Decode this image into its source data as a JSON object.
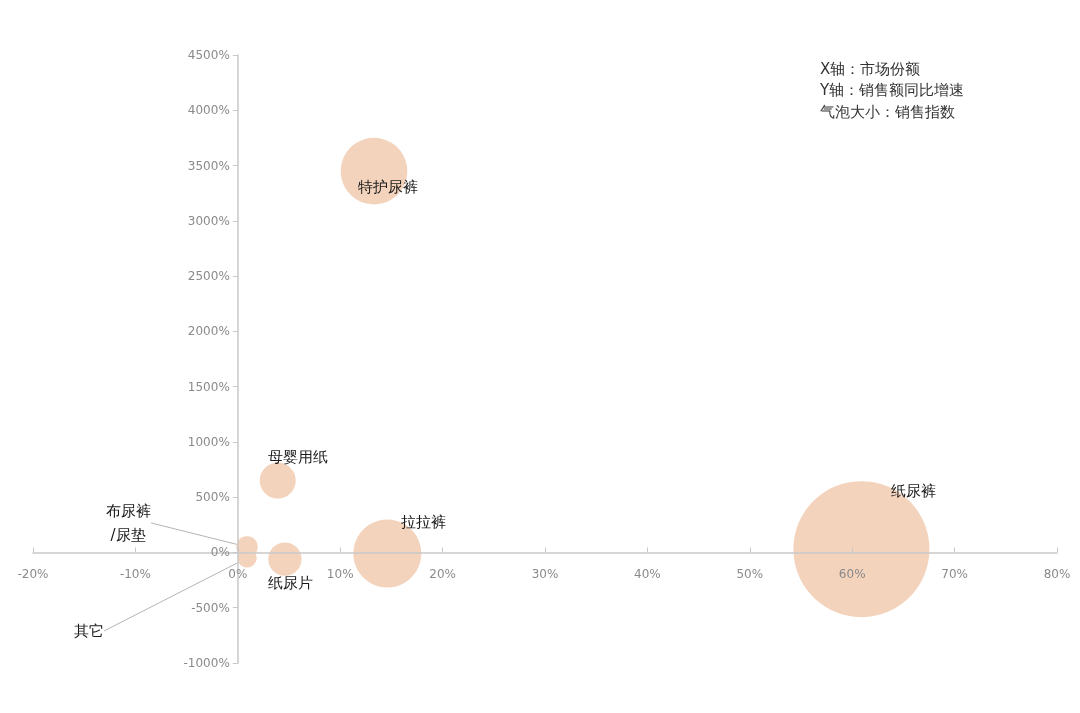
{
  "chart_data": {
    "type": "bubble",
    "annotations": [
      "X轴：市场份额",
      "Y轴：销售额同比增速",
      "气泡大小：销售指数"
    ],
    "xlim": [
      -20,
      80
    ],
    "xticks": [
      {
        "value": -20,
        "label": "-20%"
      },
      {
        "value": -10,
        "label": "-10%"
      },
      {
        "value": 0,
        "label": "0%"
      },
      {
        "value": 10,
        "label": "10%"
      },
      {
        "value": 20,
        "label": "20%"
      },
      {
        "value": 30,
        "label": "30%"
      },
      {
        "value": 40,
        "label": "40%"
      },
      {
        "value": 50,
        "label": "50%"
      },
      {
        "value": 60,
        "label": "60%"
      },
      {
        "value": 70,
        "label": "70%"
      },
      {
        "value": 80,
        "label": "80%"
      }
    ],
    "ylim": [
      -1000,
      4500
    ],
    "yticks": [
      {
        "value": -1000,
        "label": "-1000%"
      },
      {
        "value": -500,
        "label": "-500%"
      },
      {
        "value": 0,
        "label": "0%"
      },
      {
        "value": 500,
        "label": "500%"
      },
      {
        "value": 1000,
        "label": "1000%"
      },
      {
        "value": 1500,
        "label": "1500%"
      },
      {
        "value": 2000,
        "label": "2000%"
      },
      {
        "value": 2500,
        "label": "2500%"
      },
      {
        "value": 3000,
        "label": "3000%"
      },
      {
        "value": 3500,
        "label": "3500%"
      },
      {
        "value": 4000,
        "label": "4000%"
      },
      {
        "value": 4500,
        "label": "4500%"
      }
    ],
    "grid": false,
    "legend": false,
    "marker": "circle",
    "series": [
      {
        "name": "特护尿裤",
        "color": "#f3d3bc",
        "x": [
          13.3
        ],
        "values": [
          3450
        ],
        "sizes": [
          0.24
        ]
      },
      {
        "name": "母婴用纸",
        "color": "#f3d3bc",
        "x": [
          3.9
        ],
        "values": [
          650
        ],
        "sizes": [
          0.07
        ]
      },
      {
        "name": "布尿裤/尿垫",
        "color": "#f3d3bc",
        "x": [
          0.9
        ],
        "values": [
          50
        ],
        "sizes": [
          0.025
        ]
      },
      {
        "name": "其它",
        "color": "#f3d3bc",
        "x": [
          0.9
        ],
        "values": [
          -50
        ],
        "sizes": [
          0.02
        ]
      },
      {
        "name": "纸尿片",
        "color": "#f3d3bc",
        "x": [
          4.6
        ],
        "values": [
          -60
        ],
        "sizes": [
          0.06
        ]
      },
      {
        "name": "拉拉裤",
        "color": "#f3d3bc",
        "x": [
          14.6
        ],
        "values": [
          -10
        ],
        "sizes": [
          0.25
        ]
      },
      {
        "name": "纸尿裤",
        "color": "#f3d3bc",
        "x": [
          60.9
        ],
        "values": [
          30
        ],
        "sizes": [
          1
        ]
      }
    ]
  }
}
